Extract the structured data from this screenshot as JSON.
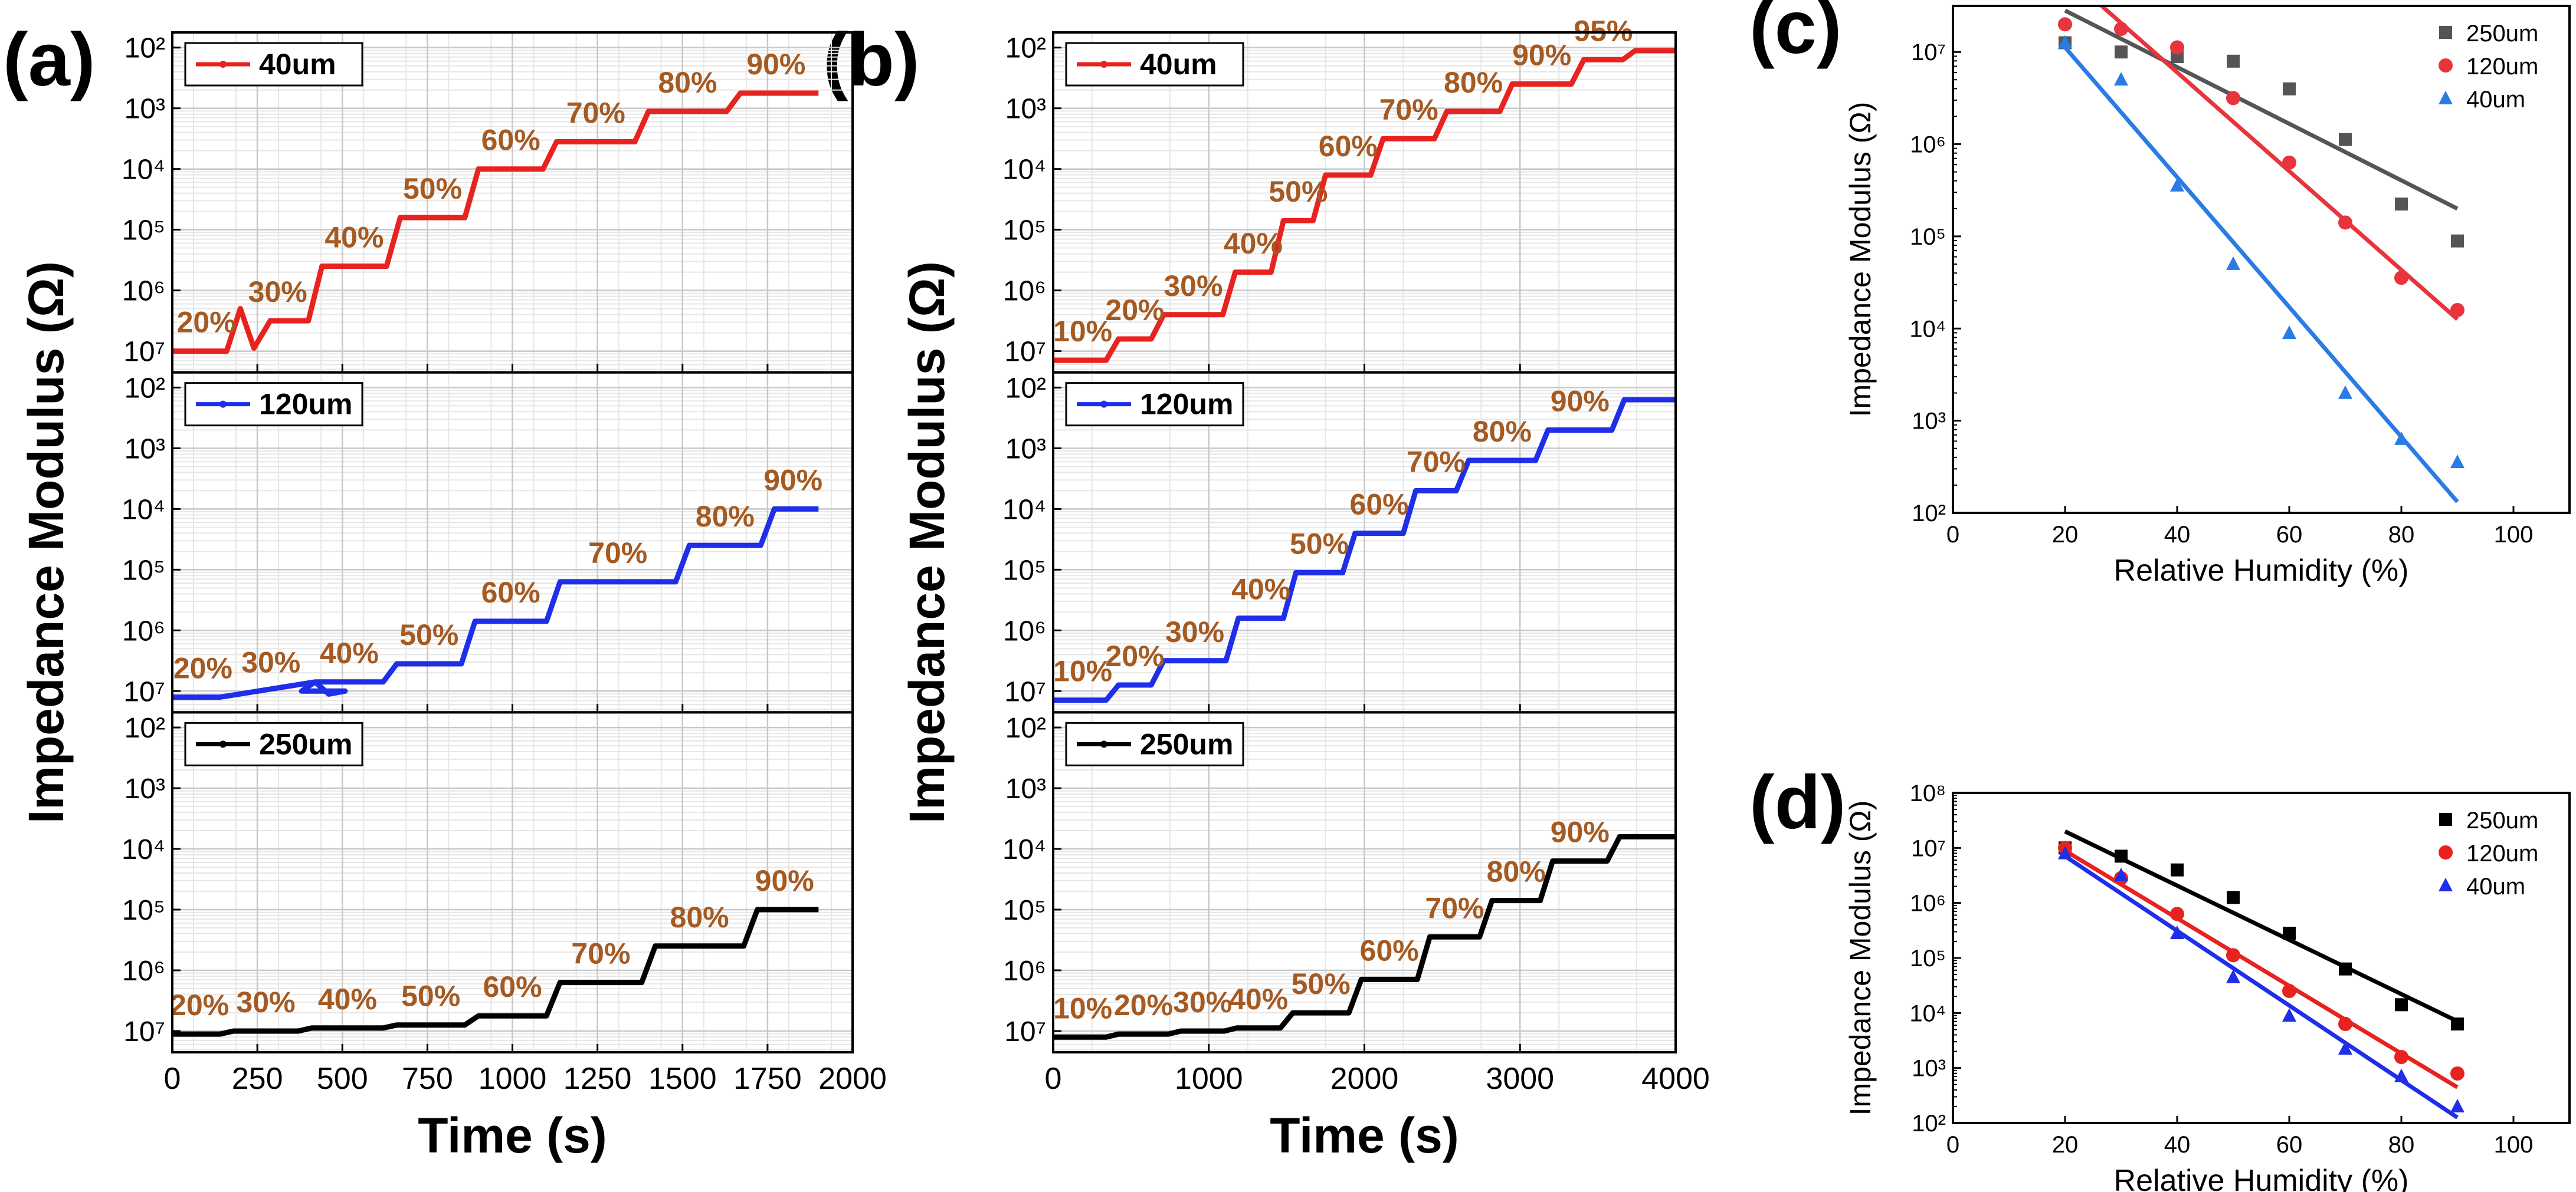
{
  "figure": {
    "panel_labels": [
      "(a)",
      "(b)",
      "(c)",
      "(d)"
    ]
  },
  "chart_data": [
    {
      "panel": "(a)",
      "type": "line",
      "xlabel": "Time (s)",
      "ylabel": "Impedance Modulus (Ω)",
      "xlim": [
        0,
        2000
      ],
      "xticks": [
        "0",
        "250",
        "500",
        "750",
        "1000",
        "1250",
        "1500",
        "1750",
        "2000"
      ],
      "y_ticks": [
        "10²",
        "10³",
        "10⁴",
        "10⁵",
        "10⁶",
        "10⁷"
      ],
      "y_axis_note": "log scale, labels increase downward",
      "subplots": [
        {
          "legend": "40um",
          "color": "#e8221f",
          "levels": [
            "20%",
            "30%",
            "40%",
            "50%",
            "60%",
            "70%",
            "80%",
            "90%"
          ],
          "step_times": [
            200,
            420,
            650,
            880,
            1110,
            1380,
            1650,
            1900
          ],
          "log_values": [
            7.0,
            6.5,
            5.6,
            4.8,
            4.0,
            3.55,
            3.05,
            2.75
          ],
          "spike_time": 200,
          "spike_log": 6.3
        },
        {
          "legend": "120um",
          "color": "#1f2ee8",
          "levels": [
            "20%",
            "30%",
            "40%",
            "50%",
            "60%",
            "70%",
            "80%",
            "90%"
          ],
          "step_times": [
            180,
            400,
            640,
            870,
            1120,
            1500,
            1750,
            1900
          ],
          "log_values": [
            7.1,
            7.0,
            6.85,
            6.55,
            5.85,
            5.2,
            4.6,
            4.0
          ],
          "spike_time": 420,
          "spike_log": 6.85
        },
        {
          "legend": "250um",
          "color": "#000000",
          "levels": [
            "20%",
            "30%",
            "40%",
            "50%",
            "60%",
            "70%",
            "80%",
            "90%"
          ],
          "step_times": [
            160,
            390,
            640,
            880,
            1120,
            1400,
            1700,
            1900
          ],
          "log_values": [
            7.05,
            7.0,
            6.95,
            6.9,
            6.75,
            6.2,
            5.6,
            5.0
          ],
          "spike_time": null,
          "spike_log": null
        }
      ]
    },
    {
      "panel": "(b)",
      "type": "line",
      "xlabel": "Time (s)",
      "ylabel": "Impedance Modulus (Ω)",
      "xlim": [
        0,
        4000
      ],
      "xticks": [
        "0",
        "1000",
        "2000",
        "3000",
        "4000"
      ],
      "y_ticks": [
        "10²",
        "10³",
        "10⁴",
        "10⁵",
        "10⁶",
        "10⁷"
      ],
      "y_axis_note": "log scale, labels increase downward",
      "subplots": [
        {
          "legend": "40um",
          "color": "#e8221f",
          "levels": [
            "10%",
            "20%",
            "30%",
            "40%",
            "50%",
            "60%",
            "70%",
            "80%",
            "90%",
            "95%"
          ],
          "step_times": [
            380,
            670,
            1130,
            1440,
            1710,
            2080,
            2490,
            2910,
            3370,
            3700,
            4000
          ],
          "log_values": [
            7.15,
            6.8,
            6.4,
            5.7,
            4.85,
            4.1,
            3.5,
            3.05,
            2.6,
            2.2,
            2.05
          ]
        },
        {
          "legend": "120um",
          "color": "#1f2ee8",
          "levels": [
            "10%",
            "20%",
            "30%",
            "40%",
            "50%",
            "60%",
            "70%",
            "80%",
            "90%"
          ],
          "step_times": [
            380,
            670,
            1150,
            1520,
            1900,
            2290,
            2630,
            3140,
            3630,
            4000
          ],
          "log_values": [
            7.15,
            6.9,
            6.5,
            5.8,
            5.05,
            4.4,
            3.7,
            3.2,
            2.7,
            2.2
          ]
        },
        {
          "legend": "250um",
          "color": "#000000",
          "levels": [
            "10%",
            "20%",
            "30%",
            "40%",
            "50%",
            "60%",
            "70%",
            "80%",
            "90%"
          ],
          "step_times": [
            380,
            780,
            1140,
            1500,
            1940,
            2380,
            2780,
            3170,
            3600,
            4000
          ],
          "log_values": [
            7.1,
            7.05,
            7.0,
            6.95,
            6.7,
            6.15,
            5.45,
            4.85,
            4.2,
            3.8
          ]
        }
      ]
    },
    {
      "panel": "(c)",
      "type": "scatter",
      "xlabel": "Relative Humidity (%)",
      "ylabel": "Impedance Modulus (Ω)",
      "xlim": [
        0,
        110
      ],
      "xticks": [
        "0",
        "20",
        "40",
        "60",
        "80",
        "100"
      ],
      "ylim_exp": [
        2,
        7.5
      ],
      "yticks": [
        "10²",
        "10³",
        "10⁴",
        "10⁵",
        "10⁶",
        "10⁷"
      ],
      "x": [
        20,
        30,
        40,
        50,
        60,
        70,
        80,
        90
      ],
      "series": [
        {
          "name": "250um",
          "color": "#555555",
          "marker": "square",
          "log_values": [
            7.1,
            7.0,
            6.95,
            6.9,
            6.6,
            6.05,
            5.35,
            4.95
          ],
          "fit_log": [
            7.45,
            5.3
          ]
        },
        {
          "name": "120um",
          "color": "#e8343c",
          "marker": "circle",
          "log_values": [
            7.3,
            7.25,
            7.05,
            6.5,
            5.8,
            5.15,
            4.55,
            4.2
          ],
          "fit_log": [
            7.85,
            4.1
          ]
        },
        {
          "name": "40um",
          "color": "#2a7be3",
          "marker": "triangle",
          "log_values": [
            7.1,
            6.7,
            5.55,
            4.7,
            3.95,
            3.3,
            2.8,
            2.55
          ],
          "fit_log": [
            7.05,
            2.12
          ]
        }
      ]
    },
    {
      "panel": "(d)",
      "type": "scatter",
      "xlabel": "Relative Humidity (%)",
      "ylabel": "Impedance Modulus (Ω)",
      "xlim": [
        0,
        110
      ],
      "xticks": [
        "0",
        "20",
        "40",
        "60",
        "80",
        "100"
      ],
      "ylim_exp": [
        2,
        8
      ],
      "yticks": [
        "10²",
        "10³",
        "10⁴",
        "10⁵",
        "10⁶",
        "10⁷",
        "10⁸"
      ],
      "x": [
        20,
        30,
        40,
        50,
        60,
        70,
        80,
        90
      ],
      "series": [
        {
          "name": "250um",
          "color": "#000000",
          "marker": "square",
          "log_values": [
            7.0,
            6.85,
            6.6,
            6.1,
            5.45,
            4.8,
            4.15,
            3.8
          ],
          "fit_log": [
            7.3,
            3.85
          ]
        },
        {
          "name": "120um",
          "color": "#e8221f",
          "marker": "circle",
          "log_values": [
            7.0,
            6.45,
            5.8,
            5.05,
            4.4,
            3.8,
            3.2,
            2.9
          ],
          "fit_log": [
            6.95,
            2.65
          ]
        },
        {
          "name": "40um",
          "color": "#1f2ee8",
          "marker": "triangle",
          "log_values": [
            6.9,
            6.5,
            5.45,
            4.65,
            3.95,
            3.35,
            2.85,
            2.3
          ],
          "fit_log": [
            6.85,
            2.1
          ]
        }
      ]
    }
  ]
}
